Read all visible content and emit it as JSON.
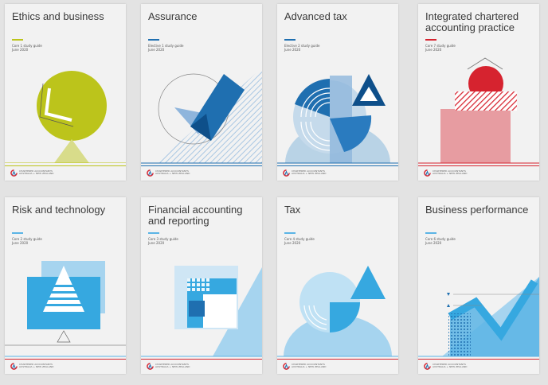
{
  "logo_text": "CHARTERED ACCOUNTANTS",
  "logo_subtext": "AUSTRALIA + NEW ZEALAND",
  "colors": {
    "green": "#bcc41b",
    "blue": "#1f6fb0",
    "light_blue": "#5ab4e5",
    "red": "#d6232f",
    "pink": "#e79ca1",
    "gray_line": "#8a8a8a"
  },
  "cards": [
    {
      "title": "Ethics and business",
      "subtitle": "Core 1 study guide",
      "date": "June 2020",
      "accent": "#bcc41b",
      "icon": "circle-triangle-art"
    },
    {
      "title": "Assurance",
      "subtitle": "Elective 1 study guide",
      "date": "June 2020",
      "accent": "#1f6fb0",
      "icon": "check-mark-art"
    },
    {
      "title": "Advanced tax",
      "subtitle": "Elective 2 study guide",
      "date": "June 2020",
      "accent": "#1f6fb0",
      "icon": "circle-segments-art"
    },
    {
      "title": "Integrated chartered accounting practice",
      "subtitle": "Core 7 study guide",
      "date": "June 2020",
      "accent": "#d6232f",
      "icon": "red-circle-pink-square-art"
    },
    {
      "title": "Risk and technology",
      "subtitle": "Core 2 study guide",
      "date": "June 2020",
      "accent": "#5ab4e5",
      "icon": "monitor-triangle-art"
    },
    {
      "title": "Financial accounting and reporting",
      "subtitle": "Core 3 study guide",
      "date": "June 2020",
      "accent": "#5ab4e5",
      "icon": "squares-grid-art"
    },
    {
      "title": "Tax",
      "subtitle": "Core 4 study guide",
      "date": "June 2020",
      "accent": "#5ab4e5",
      "icon": "circle-triangle-blue-art"
    },
    {
      "title": "Business performance",
      "subtitle": "Core 6 study guide",
      "date": "June 2020",
      "accent": "#5ab4e5",
      "icon": "growth-chart-art"
    }
  ]
}
